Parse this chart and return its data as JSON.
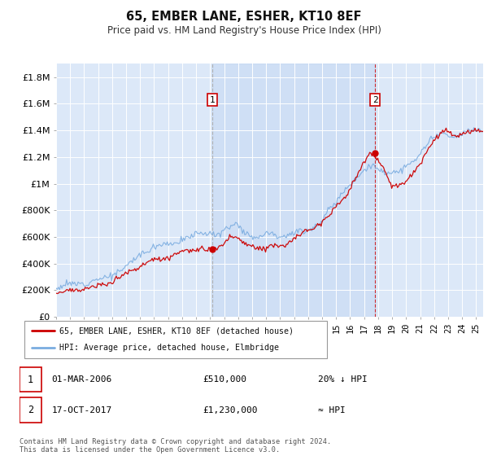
{
  "title": "65, EMBER LANE, ESHER, KT10 8EF",
  "subtitle": "Price paid vs. HM Land Registry's House Price Index (HPI)",
  "ylabel_ticks": [
    "£0",
    "£200K",
    "£400K",
    "£600K",
    "£800K",
    "£1M",
    "£1.2M",
    "£1.4M",
    "£1.6M",
    "£1.8M"
  ],
  "ytick_values": [
    0,
    200000,
    400000,
    600000,
    800000,
    1000000,
    1200000,
    1400000,
    1600000,
    1800000
  ],
  "ylim": [
    0,
    1900000
  ],
  "xlim_start": 1995.0,
  "xlim_end": 2025.5,
  "plot_bg": "#dce8f8",
  "line_color_price": "#cc0000",
  "line_color_hpi": "#7aace0",
  "marker1_x": 2006.17,
  "marker1_y": 510000,
  "marker2_x": 2017.79,
  "marker2_y": 1230000,
  "legend_label1": "65, EMBER LANE, ESHER, KT10 8EF (detached house)",
  "legend_label2": "HPI: Average price, detached house, Elmbridge",
  "table_row1_date": "01-MAR-2006",
  "table_row1_price": "£510,000",
  "table_row1_hpi": "20% ↓ HPI",
  "table_row2_date": "17-OCT-2017",
  "table_row2_price": "£1,230,000",
  "table_row2_hpi": "≈ HPI",
  "footer": "Contains HM Land Registry data © Crown copyright and database right 2024.\nThis data is licensed under the Open Government Licence v3.0.",
  "xtick_years": [
    1995,
    1996,
    1997,
    1998,
    1999,
    2000,
    2001,
    2002,
    2003,
    2004,
    2005,
    2006,
    2007,
    2008,
    2009,
    2010,
    2011,
    2012,
    2013,
    2014,
    2015,
    2016,
    2017,
    2018,
    2019,
    2020,
    2021,
    2022,
    2023,
    2024,
    2025
  ]
}
